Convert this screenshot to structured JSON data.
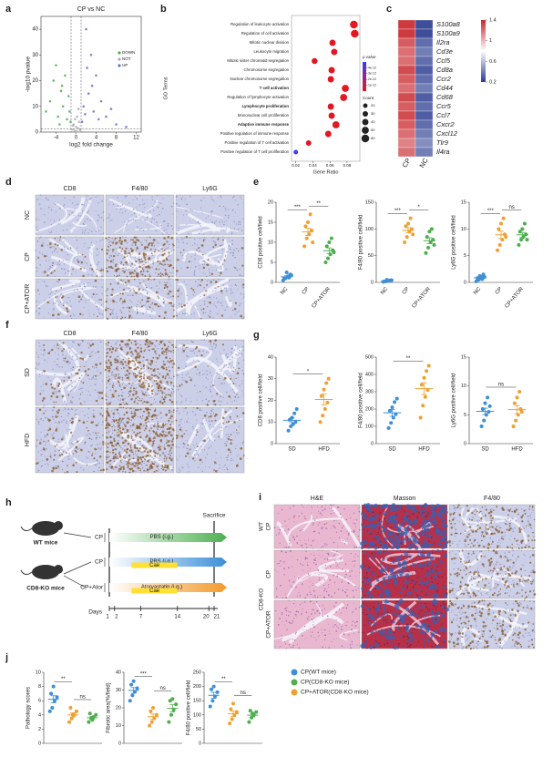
{
  "panels": {
    "letters": [
      "a",
      "b",
      "c",
      "d",
      "e",
      "f",
      "g",
      "h",
      "i",
      "j"
    ],
    "d": {
      "columns": [
        "CD8",
        "F4/80",
        "Ly6G"
      ],
      "rows": [
        "NC",
        "CP",
        "CP+ATOR"
      ]
    },
    "f": {
      "columns": [
        "CD8",
        "F4/80",
        "Ly6G"
      ],
      "rows": [
        "SD",
        "HFD"
      ]
    },
    "h": {
      "sacrifice": "Sacrifice",
      "mice": [
        "WT mice",
        "CD8-KO mice"
      ],
      "rows": [
        {
          "label": "CP",
          "treatment": "PBS (i.g.)"
        },
        {
          "label": "CP",
          "treatment": "PBS (i.g.)",
          "inducer": "Cae"
        },
        {
          "label": "CP+Ator",
          "treatment": "Atorvastatin (i.g.)",
          "inducer": "Cae"
        }
      ],
      "days_label": "Days",
      "days": [
        1,
        2,
        7,
        14,
        20,
        21
      ]
    },
    "i": {
      "columns": [
        "H&E",
        "Masson",
        "F4/80"
      ],
      "groups": [
        "WT",
        "CD8-KO"
      ],
      "rows": [
        "CP",
        "CP",
        "CP+ATOR"
      ]
    },
    "j_legend": [
      {
        "name": "CP(WT mice)",
        "color": "#3d8fd6"
      },
      {
        "name": "CP(CD8-KO mice)",
        "color": "#4cae4c"
      },
      {
        "name": "CP+ATOR(CD8-KO mice)",
        "color": "#f0a030"
      }
    ]
  },
  "chart_data": [
    {
      "type": "scatter",
      "title": "CP vs NC",
      "xlabel": "log2 fold change",
      "ylabel": "-log10 pvalue",
      "xlim": [
        -7,
        13
      ],
      "xticks": [
        -4,
        0,
        4,
        8,
        12
      ],
      "ylim": [
        0,
        45
      ],
      "yticks": [
        0,
        10,
        20,
        30,
        40
      ],
      "fc_threshold": [
        -1,
        1
      ],
      "p_threshold": 1.3,
      "legend": "right",
      "series": [
        {
          "name": "DOWN",
          "color": "#4caf50",
          "x": [
            -6,
            -5.2,
            -4.5,
            -4,
            -3.6,
            -3,
            -2.6,
            -2.2,
            -1.8,
            -1.5,
            -1.3,
            -1.1,
            -2.8,
            -3.3
          ],
          "y": [
            8,
            12,
            20,
            26,
            6,
            16,
            10,
            22,
            5,
            14,
            8,
            4,
            18,
            3
          ]
        },
        {
          "name": "NOT",
          "color": "#b0b0b0",
          "x": [
            -0.8,
            -0.5,
            -0.3,
            0,
            0.2,
            0.4,
            0.6,
            0.8,
            -0.6,
            0.1,
            0.5,
            -0.2
          ],
          "y": [
            1,
            3,
            0.5,
            2,
            6,
            1.5,
            4,
            0.8,
            2.5,
            0.3,
            9,
            5
          ]
        },
        {
          "name": "UP",
          "color": "#6a6fd0",
          "x": [
            1.2,
            1.5,
            2,
            2.5,
            3,
            3.5,
            4,
            5,
            6,
            7,
            8,
            2.2,
            3.2,
            4.5,
            1.8,
            10
          ],
          "y": [
            4,
            10,
            40,
            15,
            30,
            8,
            22,
            12,
            6,
            9,
            3,
            25,
            18,
            5,
            7,
            2
          ]
        }
      ]
    },
    {
      "type": "bubble",
      "xlabel": "Gene Ratio",
      "ylabel": "GO Terms",
      "categories": [
        "Regulation of leukocyte activation",
        "Regulation of cell activation",
        "Mitotic nuclear division",
        "Leukocyte migration",
        "Mitotic sister chromatid segregation",
        "Chromosome segregation",
        "Nuclear chromosome segregation",
        "T cell activation",
        "Regulation of lymphocyte activation",
        "Lymphocyte proliferation",
        "Mononuclear cell proliferation",
        "Adaptive immune response",
        "Positive regulation of immune response",
        "Positive regulation of T cell activation",
        "Positive regulation of T cell proliferation"
      ],
      "highlighted": [
        false,
        false,
        false,
        false,
        false,
        false,
        false,
        true,
        false,
        true,
        false,
        true,
        false,
        false,
        false
      ],
      "highlight_color": "#d62728",
      "values": [
        0.088,
        0.089,
        0.063,
        0.065,
        0.042,
        0.062,
        0.061,
        0.078,
        0.076,
        0.061,
        0.062,
        0.067,
        0.058,
        0.035,
        0.02
      ],
      "sizes": [
        60,
        60,
        40,
        40,
        35,
        40,
        40,
        50,
        50,
        40,
        40,
        50,
        40,
        30,
        20
      ],
      "pvalues": [
        1e-13,
        1e-13,
        2e-13,
        2e-13,
        2e-13,
        2e-13,
        2e-13,
        1e-13,
        1e-13,
        2e-13,
        2e-13,
        1e-13,
        2e-13,
        3e-13,
        4.8e-12
      ],
      "xlim": [
        0.015,
        0.095
      ],
      "xticks": [
        0.02,
        0.04,
        0.06,
        0.08
      ],
      "color_label": "p value",
      "clim": [
        0,
        5e-12
      ],
      "cticks": [
        {
          "value": 4e-12,
          "label": "4e-12"
        },
        {
          "value": 3e-12,
          "label": "3e-12"
        },
        {
          "value": 2e-12,
          "label": "2e-12"
        },
        {
          "value": 1e-12,
          "label": "1e-12"
        }
      ],
      "colors": [
        "#e8161b",
        "#3a3aff"
      ],
      "size_label": "Count",
      "size_ticks": [
        20,
        30,
        40,
        50,
        60
      ]
    },
    {
      "type": "heatmap",
      "columns": [
        "CP",
        "NC"
      ],
      "rows": [
        "S100a8",
        "S100a9",
        "Il2ra",
        "Cd3e",
        "Ccl5",
        "Cd8a",
        "Ccr2",
        "Cd44",
        "Cd68",
        "Ccr5",
        "Ccl7",
        "Cxcr2",
        "Cxcl12",
        "Tlr9",
        "Il4ra"
      ],
      "values": [
        [
          1.35,
          0.25
        ],
        [
          1.35,
          0.25
        ],
        [
          1.25,
          0.35
        ],
        [
          1.2,
          0.4
        ],
        [
          1.2,
          0.35
        ],
        [
          1.3,
          0.3
        ],
        [
          1.25,
          0.35
        ],
        [
          1.2,
          0.4
        ],
        [
          1.3,
          0.3
        ],
        [
          1.25,
          0.35
        ],
        [
          1.3,
          0.3
        ],
        [
          1.25,
          0.35
        ],
        [
          1.2,
          0.4
        ],
        [
          1.15,
          0.45
        ],
        [
          1.2,
          0.4
        ]
      ],
      "clim": [
        0.2,
        1.4
      ],
      "cticks": [
        1.4,
        1,
        0.6,
        0.2
      ],
      "colors": [
        "#2c3e92",
        "#ffffff",
        "#c8282e"
      ]
    },
    {
      "type": "dot",
      "ylabel": "CD8 positive cell/field",
      "categories": [
        "NC",
        "CP",
        "CP+ATOR"
      ],
      "colors": [
        "#3d8fd6",
        "#f0a030",
        "#4cae4c"
      ],
      "points": [
        [
          0.5,
          1,
          1.5,
          2,
          1,
          2.5,
          1.2,
          1.8
        ],
        [
          9,
          11,
          12,
          13,
          14,
          15,
          17,
          10
        ],
        [
          5,
          6,
          7,
          8,
          9,
          10,
          11,
          7.5
        ]
      ],
      "means": [
        1.4,
        12.6,
        7.9
      ],
      "sems": [
        0.25,
        0.9,
        0.7
      ],
      "ylim": [
        0,
        20
      ],
      "yticks": [
        0,
        5,
        10,
        15,
        20
      ],
      "comparisons": [
        "***",
        "**"
      ]
    },
    {
      "type": "dot",
      "ylabel": "F4/80 positive cell/field",
      "categories": [
        "NC",
        "CP",
        "CP+ATOR"
      ],
      "colors": [
        "#3d8fd6",
        "#f0a030",
        "#4cae4c"
      ],
      "points": [
        [
          1,
          2,
          3,
          4,
          2,
          5,
          3,
          4
        ],
        [
          75,
          85,
          95,
          100,
          105,
          110,
          120,
          90
        ],
        [
          55,
          65,
          75,
          80,
          85,
          95,
          100,
          70
        ]
      ],
      "means": [
        3,
        97.5,
        78
      ],
      "sems": [
        0.5,
        5,
        5.5
      ],
      "ylim": [
        0,
        150
      ],
      "yticks": [
        0,
        50,
        100,
        150
      ],
      "comparisons": [
        "***",
        "*"
      ]
    },
    {
      "type": "dot",
      "ylabel": "Ly6G positive cell/field",
      "categories": [
        "NC",
        "CP",
        "CP+ATOR"
      ],
      "colors": [
        "#3d8fd6",
        "#f0a030",
        "#4cae4c"
      ],
      "points": [
        [
          0.2,
          0.5,
          1,
          1.5,
          0.8,
          1.2,
          0.6,
          1
        ],
        [
          6,
          7,
          8,
          9,
          10,
          11,
          12,
          8.5
        ],
        [
          7,
          8,
          8.5,
          9,
          9.5,
          10,
          11,
          8
        ]
      ],
      "means": [
        0.85,
        8.9,
        8.9
      ],
      "sems": [
        0.15,
        0.7,
        0.45
      ],
      "ylim": [
        0,
        15
      ],
      "yticks": [
        0,
        5,
        10,
        15
      ],
      "comparisons": [
        "***",
        "ns"
      ]
    },
    {
      "type": "dot",
      "ylabel": "CD8 positive cell/field",
      "categories": [
        "SD",
        "HFD"
      ],
      "colors": [
        "#3d8fd6",
        "#f0a030"
      ],
      "points": [
        [
          6,
          8,
          9,
          10,
          11,
          12,
          14,
          16
        ],
        [
          10,
          13,
          16,
          19,
          22,
          25,
          28,
          30
        ]
      ],
      "means": [
        10.8,
        20.4
      ],
      "sems": [
        1.1,
        2.5
      ],
      "ylim": [
        0,
        40
      ],
      "yticks": [
        0,
        10,
        20,
        30,
        40
      ],
      "comparisons": [
        "*"
      ]
    },
    {
      "type": "dot",
      "ylabel": "F4/80 positive cell/field",
      "categories": [
        "SD",
        "HFD"
      ],
      "colors": [
        "#3d8fd6",
        "#f0a030"
      ],
      "points": [
        [
          90,
          120,
          150,
          170,
          190,
          210,
          240,
          260
        ],
        [
          150,
          220,
          270,
          310,
          340,
          380,
          420,
          450
        ]
      ],
      "means": [
        178,
        318
      ],
      "sems": [
        20,
        34
      ],
      "ylim": [
        0,
        500
      ],
      "yticks": [
        0,
        100,
        200,
        300,
        400,
        500
      ],
      "comparisons": [
        "**"
      ]
    },
    {
      "type": "dot",
      "ylabel": "Ly6G positive cell/field",
      "categories": [
        "SD",
        "HFD"
      ],
      "colors": [
        "#3d8fd6",
        "#f0a030"
      ],
      "points": [
        [
          3,
          4,
          5,
          5.5,
          6,
          7,
          8,
          6.5
        ],
        [
          3,
          4,
          5,
          6,
          7,
          8,
          9,
          5.5
        ]
      ],
      "means": [
        5.6,
        5.9
      ],
      "sems": [
        0.55,
        0.7
      ],
      "ylim": [
        0,
        15
      ],
      "yticks": [
        0,
        5,
        10,
        15
      ],
      "comparisons": [
        "ns"
      ]
    },
    {
      "type": "dot",
      "ylabel": "Pathology scores",
      "colors": [
        "#3d8fd6",
        "#f0a030",
        "#4cae4c"
      ],
      "points": [
        [
          4.5,
          5,
          6,
          6.5,
          7,
          8
        ],
        [
          3,
          3.5,
          4,
          4.5,
          5,
          4
        ],
        [
          3,
          3.5,
          3.7,
          4,
          4.2,
          3.3
        ]
      ],
      "means": [
        6.2,
        4,
        3.6
      ],
      "sems": [
        0.5,
        0.3,
        0.2
      ],
      "ylim": [
        0,
        10
      ],
      "yticks": [
        0,
        2,
        4,
        6,
        8,
        10
      ],
      "comparisons": [
        "**",
        "ns"
      ]
    },
    {
      "type": "dot",
      "ylabel": "Fibrotic area(%/field)",
      "colors": [
        "#3d8fd6",
        "#f0a030",
        "#4cae4c"
      ],
      "points": [
        [
          24,
          27,
          29,
          31,
          33,
          35
        ],
        [
          10,
          12,
          14,
          16,
          18,
          20
        ],
        [
          12,
          16,
          19,
          22,
          24,
          25
        ]
      ],
      "means": [
        29.8,
        15,
        19.7
      ],
      "sems": [
        1.6,
        1.5,
        2
      ],
      "ylim": [
        0,
        40
      ],
      "yticks": [
        0,
        10,
        20,
        30,
        40
      ],
      "comparisons": [
        "***",
        "ns"
      ]
    },
    {
      "type": "dot",
      "ylabel": "F4/80 positive cell/field",
      "colors": [
        "#3d8fd6",
        "#f0a030",
        "#4cae4c"
      ],
      "points": [
        [
          130,
          150,
          165,
          180,
          190,
          200
        ],
        [
          70,
          85,
          100,
          110,
          120,
          140
        ],
        [
          75,
          90,
          100,
          110,
          115,
          105
        ]
      ],
      "means": [
        169,
        104,
        99
      ],
      "sems": [
        10.5,
        10,
        6
      ],
      "ylim": [
        0,
        250
      ],
      "yticks": [
        0,
        50,
        100,
        150,
        200,
        250
      ],
      "comparisons": [
        "**",
        "ns"
      ]
    }
  ]
}
